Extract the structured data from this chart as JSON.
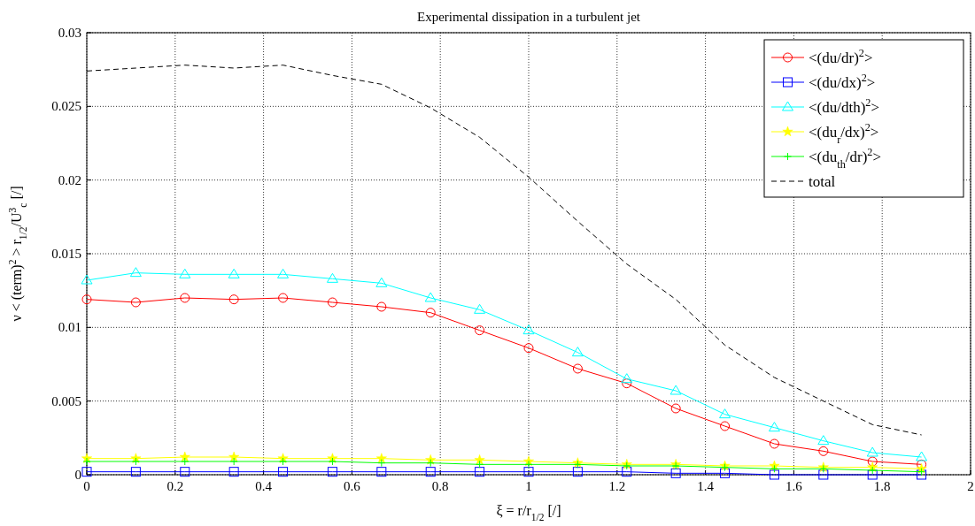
{
  "chart_data": {
    "type": "line",
    "title": "Experimental dissipation in a turbulent jet",
    "xlabel": "ξ  = r/r$_{1/2}$ [/]",
    "ylabel": "ν < (term)$^{2}$ > r$_{1/2}$/U$^{3}$$_{c}$ [/]",
    "x": [
      0,
      0.111,
      0.222,
      0.333,
      0.444,
      0.556,
      0.667,
      0.778,
      0.889,
      1,
      1.111,
      1.222,
      1.333,
      1.444,
      1.556,
      1.667,
      1.778,
      1.889
    ],
    "xlim": [
      0,
      2
    ],
    "xticks": [
      0,
      0.2,
      0.4,
      0.6,
      0.8,
      1,
      1.2,
      1.4,
      1.6,
      1.8,
      2
    ],
    "ylim": [
      0,
      0.03
    ],
    "yticks": [
      0,
      0.005,
      0.01,
      0.015,
      0.02,
      0.025,
      0.03
    ],
    "grid": true,
    "legend": "top right",
    "series": [
      {
        "name": "<(du/dr)$^{2}$>",
        "color": "#ff0000",
        "marker": "circle",
        "values": [
          0.0119,
          0.0117,
          0.012,
          0.0119,
          0.012,
          0.0117,
          0.0114,
          0.011,
          0.0098,
          0.0086,
          0.0072,
          0.0062,
          0.0045,
          0.0033,
          0.0021,
          0.0016,
          0.0009,
          0.0007
        ]
      },
      {
        "name": "<(du/dx)$^{2}$>",
        "color": "#0000ff",
        "marker": "square",
        "values": [
          0.0002,
          0.0002,
          0.0002,
          0.0002,
          0.0002,
          0.0002,
          0.0002,
          0.0002,
          0.0002,
          0.0002,
          0.0002,
          0.0002,
          0.0001,
          0.0001,
          0,
          0,
          0,
          0
        ]
      },
      {
        "name": "<(du/dth)$^{2}$>",
        "color": "#00ffff",
        "marker": "triangle",
        "values": [
          0.0132,
          0.0137,
          0.0136,
          0.0136,
          0.0136,
          0.0133,
          0.013,
          0.012,
          0.0112,
          0.0098,
          0.0083,
          0.0065,
          0.0057,
          0.0041,
          0.0032,
          0.0023,
          0.0015,
          0.0012
        ]
      },
      {
        "name": "<(du$_{r}$/dx)$^{2}$>",
        "color": "#ffff00",
        "marker": "star",
        "values": [
          0.0011,
          0.0011,
          0.0012,
          0.0012,
          0.0011,
          0.0011,
          0.0011,
          0.001,
          0.001,
          0.0009,
          0.0008,
          0.0007,
          0.0007,
          0.0006,
          0.0006,
          0.0005,
          0.0005,
          0.0004
        ]
      },
      {
        "name": "<(du$_{th}$/dr)$^{2}$>",
        "color": "#00ff00",
        "marker": "cross",
        "values": [
          0.0009,
          0.0009,
          0.0009,
          0.0009,
          0.0009,
          0.0009,
          0.0008,
          0.0008,
          0.0007,
          0.0007,
          0.0007,
          0.0006,
          0.0006,
          0.0005,
          0.0004,
          0.0004,
          0.0003,
          0.0002
        ]
      },
      {
        "name": "total",
        "color": "#000000",
        "marker": "none",
        "line_style": "dashed",
        "values": [
          0.0274,
          0.0276,
          0.0278,
          0.0276,
          0.0278,
          0.0271,
          0.0265,
          0.0249,
          0.0229,
          0.0202,
          0.0172,
          0.0143,
          0.0119,
          0.0088,
          0.0066,
          0.005,
          0.0034,
          0.0027
        ]
      }
    ]
  }
}
